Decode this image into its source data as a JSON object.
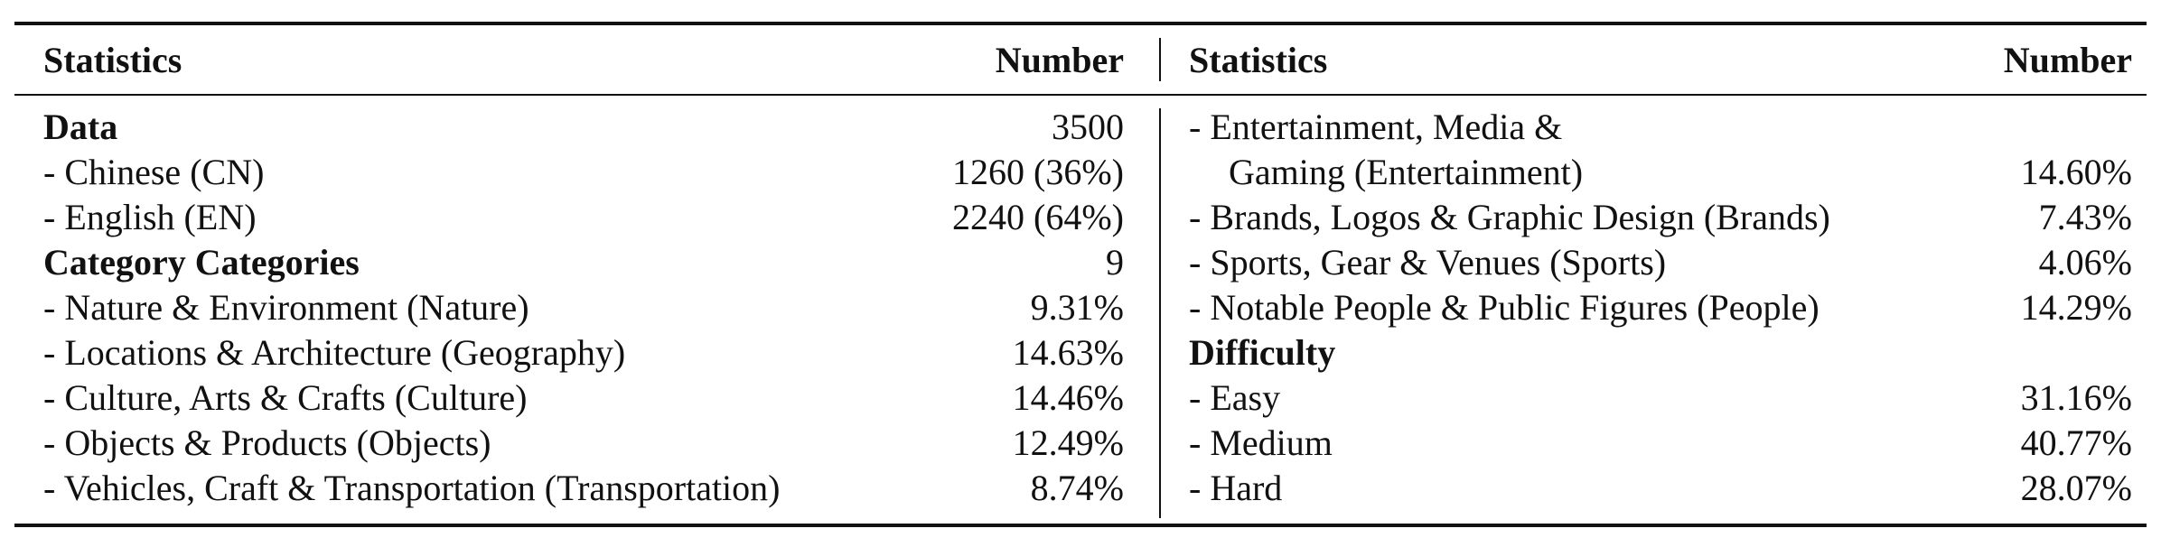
{
  "header": {
    "left_statistics": "Statistics",
    "left_number": "Number",
    "right_statistics": "Statistics",
    "right_number": "Number"
  },
  "left_rows": [
    {
      "label": "Data",
      "value": "3500",
      "bold": true
    },
    {
      "label": "- Chinese (CN)",
      "value": "1260 (36%)",
      "bold": false
    },
    {
      "label": "- English (EN)",
      "value": "2240 (64%)",
      "bold": false
    },
    {
      "label": "Category Categories",
      "value": "9",
      "bold": true
    },
    {
      "label": "- Nature & Environment (Nature)",
      "value": "9.31%",
      "bold": false
    },
    {
      "label": "- Locations & Architecture (Geography)",
      "value": "14.63%",
      "bold": false
    },
    {
      "label": "- Culture, Arts & Crafts (Culture)",
      "value": "14.46%",
      "bold": false
    },
    {
      "label": "- Objects & Products (Objects)",
      "value": "12.49%",
      "bold": false
    },
    {
      "label": "- Vehicles, Craft & Transportation (Transportation)",
      "value": "8.74%",
      "bold": false
    }
  ],
  "right_rows": [
    {
      "label": "- Entertainment, Media &",
      "value": "",
      "bold": false
    },
    {
      "label": "Gaming (Entertainment)",
      "value": "14.60%",
      "bold": false,
      "indent": true
    },
    {
      "label": "- Brands, Logos & Graphic Design (Brands)",
      "value": "7.43%",
      "bold": false
    },
    {
      "label": "- Sports, Gear & Venues (Sports)",
      "value": "4.06%",
      "bold": false
    },
    {
      "label": "- Notable People & Public Figures (People)",
      "value": "14.29%",
      "bold": false
    },
    {
      "label": "Difficulty",
      "value": "",
      "bold": true
    },
    {
      "label": "- Easy",
      "value": "31.16%",
      "bold": false
    },
    {
      "label": "- Medium",
      "value": "40.77%",
      "bold": false
    },
    {
      "label": "- Hard",
      "value": "28.07%",
      "bold": false
    }
  ]
}
